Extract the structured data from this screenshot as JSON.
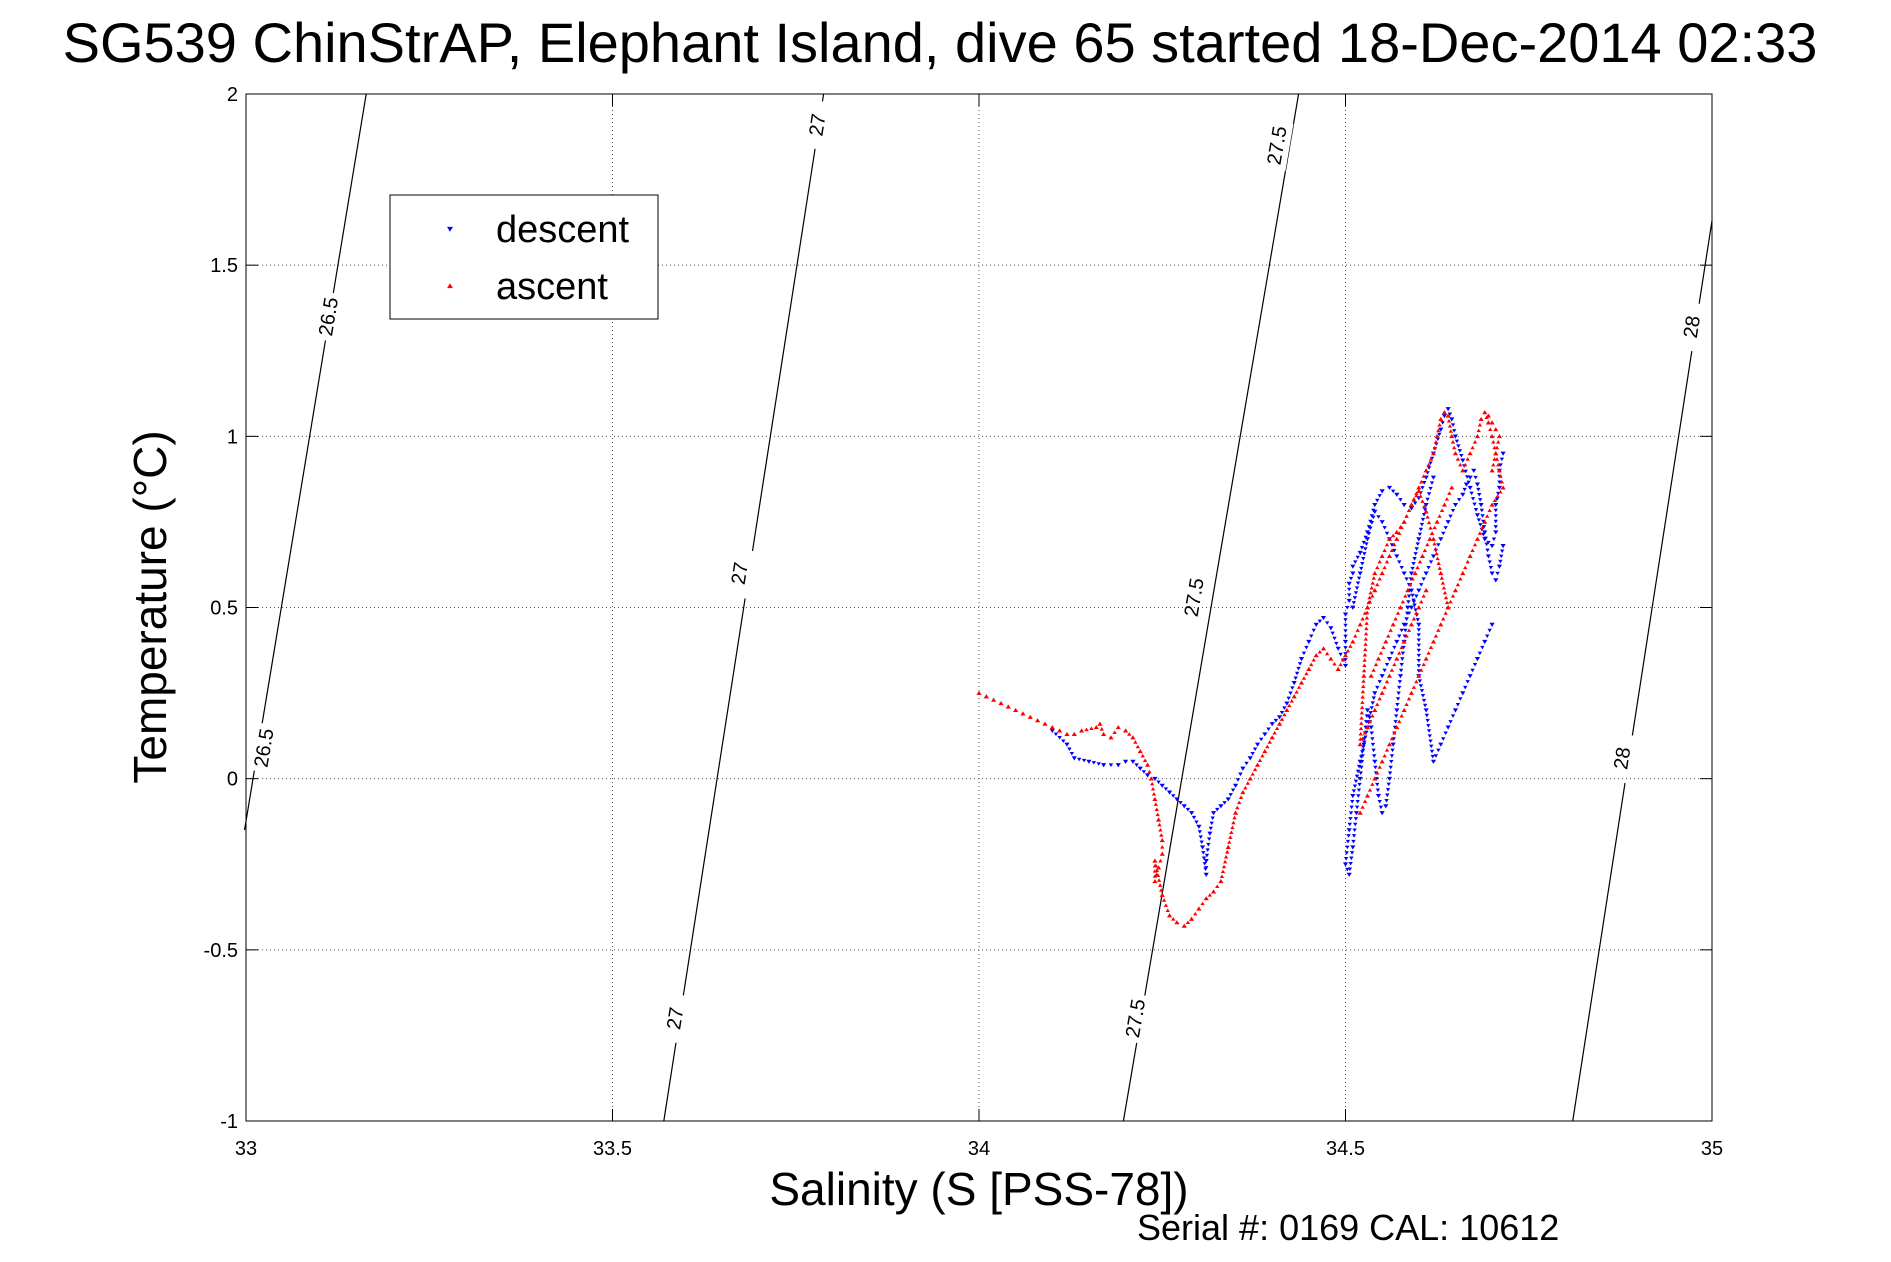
{
  "chart_data": {
    "type": "scatter",
    "title": "SG539 ChinStrAP, Elephant Island, dive 65 started 18-Dec-2014 02:33",
    "xlabel": "Salinity (S [PSS-78])",
    "ylabel": "Temperature (°C)",
    "xlim": [
      33,
      35
    ],
    "ylim": [
      -1,
      2
    ],
    "xticks": [
      "33",
      "33.5",
      "34",
      "34.5",
      "35"
    ],
    "yticks": [
      "-1",
      "-0.5",
      "0",
      "0.5",
      "1",
      "1.5",
      "2"
    ],
    "grid": true,
    "footer": "Serial #: 0169 CAL: 10612",
    "legend": {
      "position": "top-left",
      "entries": [
        {
          "label": "descent",
          "color": "#0000ff",
          "marker": "triangle-down"
        },
        {
          "label": "ascent",
          "color": "#ff0000",
          "marker": "triangle-up"
        }
      ]
    },
    "density_contours": [
      {
        "label": "26.5",
        "line": [
          [
            32.998,
            -0.15
          ],
          [
            33.164,
            2.0
          ]
        ],
        "label_at": [
          [
            33.024,
            0.09
          ],
          [
            33.112,
            1.35
          ]
        ]
      },
      {
        "label": "27",
        "line": [
          [
            33.57,
            -1.0
          ],
          [
            33.788,
            2.0
          ]
        ],
        "label_at": [
          [
            33.585,
            -0.7
          ],
          [
            33.673,
            0.6
          ],
          [
            33.779,
            1.91
          ]
        ]
      },
      {
        "label": "27.5",
        "line": [
          [
            34.197,
            -1.0
          ],
          [
            34.436,
            2.0
          ]
        ],
        "label_at": [
          [
            34.213,
            -0.7
          ],
          [
            34.293,
            0.53
          ],
          [
            34.406,
            1.85
          ]
        ]
      },
      {
        "label": "28",
        "line": [
          [
            34.81,
            -1.0
          ],
          [
            35.0,
            1.63
          ]
        ],
        "label_at": [
          [
            34.877,
            0.06
          ],
          [
            34.972,
            1.32
          ]
        ]
      }
    ],
    "series": [
      {
        "name": "descent",
        "color": "#0000ff",
        "marker": "triangle-down",
        "x": [
          34.1,
          34.12,
          34.13,
          34.15,
          34.17,
          34.19,
          34.2,
          34.21,
          34.22,
          34.23,
          34.24,
          34.25,
          34.26,
          34.27,
          34.28,
          34.29,
          34.3,
          34.305,
          34.31,
          34.31,
          34.315,
          34.32,
          34.33,
          34.34,
          34.35,
          34.36,
          34.37,
          34.38,
          34.39,
          34.4,
          34.41,
          34.42,
          34.43,
          34.44,
          34.45,
          34.46,
          34.47,
          34.48,
          34.49,
          34.5,
          34.5,
          34.5,
          34.505,
          34.505,
          34.51,
          34.51,
          34.52,
          34.53,
          34.54,
          34.55,
          34.56,
          34.57,
          34.58,
          34.59,
          34.6,
          34.61,
          34.62,
          34.63,
          34.635,
          34.64,
          34.645,
          34.65,
          34.66,
          34.67,
          34.68,
          34.69,
          34.7,
          34.705,
          34.705,
          34.71,
          34.71,
          34.715,
          34.62,
          34.61,
          34.6,
          34.59,
          34.585,
          34.58,
          34.575,
          34.57,
          34.565,
          34.56,
          34.555,
          34.55,
          34.545,
          34.54,
          34.535,
          34.53,
          34.525,
          34.52,
          34.515,
          34.51,
          34.505,
          34.5,
          34.505,
          34.51,
          34.52,
          34.53,
          34.54,
          34.55,
          34.56,
          34.57,
          34.58,
          34.59,
          34.6,
          34.61,
          34.62,
          34.63,
          34.64,
          34.65,
          34.66,
          34.665,
          34.67,
          34.675,
          34.68,
          34.685,
          34.69,
          34.695,
          34.7,
          34.705,
          34.71,
          34.715,
          34.7,
          34.69,
          34.68,
          34.67,
          34.66,
          34.65,
          34.64,
          34.63,
          34.62,
          34.61,
          34.6,
          34.6,
          34.59,
          34.58,
          34.57,
          34.56,
          34.55,
          34.54,
          34.53,
          34.52,
          34.51
        ],
        "y": [
          0.14,
          0.1,
          0.06,
          0.05,
          0.04,
          0.04,
          0.05,
          0.05,
          0.03,
          0.01,
          0.0,
          -0.02,
          -0.04,
          -0.06,
          -0.08,
          -0.1,
          -0.14,
          -0.2,
          -0.28,
          -0.24,
          -0.16,
          -0.1,
          -0.08,
          -0.06,
          -0.02,
          0.03,
          0.06,
          0.1,
          0.13,
          0.16,
          0.18,
          0.22,
          0.28,
          0.35,
          0.4,
          0.45,
          0.47,
          0.44,
          0.38,
          0.33,
          0.4,
          0.48,
          0.52,
          0.57,
          0.6,
          0.62,
          0.66,
          0.72,
          0.8,
          0.84,
          0.85,
          0.83,
          0.8,
          0.79,
          0.82,
          0.88,
          0.95,
          1.02,
          1.06,
          1.08,
          1.05,
          1.0,
          0.93,
          0.85,
          0.77,
          0.7,
          0.68,
          0.72,
          0.8,
          0.85,
          0.9,
          0.95,
          0.88,
          0.8,
          0.7,
          0.6,
          0.5,
          0.4,
          0.3,
          0.2,
          0.1,
          0.0,
          -0.08,
          -0.1,
          -0.05,
          0.05,
          0.15,
          0.2,
          0.1,
          0.0,
          -0.1,
          -0.2,
          -0.28,
          -0.25,
          -0.15,
          -0.05,
          0.05,
          0.15,
          0.25,
          0.3,
          0.35,
          0.4,
          0.45,
          0.5,
          0.55,
          0.6,
          0.65,
          0.7,
          0.75,
          0.8,
          0.83,
          0.86,
          0.88,
          0.9,
          0.86,
          0.8,
          0.72,
          0.65,
          0.6,
          0.58,
          0.62,
          0.68,
          0.45,
          0.4,
          0.35,
          0.3,
          0.25,
          0.2,
          0.15,
          0.1,
          0.05,
          0.2,
          0.3,
          0.45,
          0.55,
          0.6,
          0.65,
          0.7,
          0.75,
          0.78,
          0.7,
          0.6,
          0.5
        ]
      },
      {
        "name": "ascent",
        "color": "#ff0000",
        "marker": "triangle-up",
        "x": [
          34.0,
          34.01,
          34.02,
          34.03,
          34.04,
          34.05,
          34.06,
          34.07,
          34.08,
          34.09,
          34.1,
          34.11,
          34.12,
          34.13,
          34.14,
          34.16,
          34.165,
          34.17,
          34.18,
          34.19,
          34.2,
          34.21,
          34.22,
          34.23,
          34.235,
          34.24,
          34.245,
          34.25,
          34.25,
          34.245,
          34.24,
          34.24,
          34.25,
          34.26,
          34.27,
          34.28,
          34.29,
          34.3,
          34.31,
          34.32,
          34.33,
          34.34,
          34.35,
          34.36,
          34.37,
          34.38,
          34.39,
          34.4,
          34.41,
          34.42,
          34.43,
          34.44,
          34.45,
          34.46,
          34.47,
          34.48,
          34.49,
          34.5,
          34.51,
          34.52,
          34.53,
          34.54,
          34.55,
          34.56,
          34.57,
          34.58,
          34.59,
          34.6,
          34.61,
          34.62,
          34.625,
          34.63,
          34.635,
          34.64,
          34.645,
          34.65,
          34.66,
          34.67,
          34.68,
          34.685,
          34.69,
          34.695,
          34.7,
          34.705,
          34.71,
          34.715,
          34.7,
          34.69,
          34.68,
          34.67,
          34.66,
          34.65,
          34.64,
          34.63,
          34.62,
          34.61,
          34.6,
          34.59,
          34.58,
          34.57,
          34.56,
          34.55,
          34.54,
          34.53,
          34.52,
          34.535,
          34.545,
          34.555,
          34.565,
          34.575,
          34.585,
          34.595,
          34.605,
          34.615,
          34.625,
          34.635,
          34.645,
          34.61,
          34.6,
          34.59,
          34.58,
          34.57,
          34.56,
          34.55,
          34.54,
          34.53,
          34.52,
          34.525,
          34.53,
          34.54,
          34.55,
          34.56,
          34.57,
          34.58,
          34.59,
          34.6,
          34.61,
          34.62,
          34.63,
          34.64,
          34.7,
          34.705,
          34.71,
          34.705,
          34.7,
          34.695
        ],
        "y": [
          0.25,
          0.24,
          0.23,
          0.22,
          0.21,
          0.2,
          0.19,
          0.18,
          0.17,
          0.16,
          0.15,
          0.14,
          0.13,
          0.13,
          0.14,
          0.15,
          0.16,
          0.13,
          0.12,
          0.15,
          0.14,
          0.12,
          0.08,
          0.04,
          0.0,
          -0.06,
          -0.12,
          -0.18,
          -0.22,
          -0.26,
          -0.3,
          -0.24,
          -0.34,
          -0.4,
          -0.42,
          -0.43,
          -0.41,
          -0.38,
          -0.35,
          -0.33,
          -0.3,
          -0.2,
          -0.1,
          -0.04,
          0.0,
          0.04,
          0.08,
          0.12,
          0.16,
          0.2,
          0.24,
          0.28,
          0.32,
          0.36,
          0.38,
          0.35,
          0.32,
          0.36,
          0.4,
          0.45,
          0.5,
          0.55,
          0.6,
          0.65,
          0.7,
          0.75,
          0.8,
          0.85,
          0.9,
          0.95,
          1.0,
          1.05,
          1.07,
          1.06,
          1.0,
          0.95,
          0.9,
          0.95,
          1.0,
          1.05,
          1.07,
          1.04,
          1.0,
          0.95,
          0.9,
          0.85,
          0.8,
          0.75,
          0.7,
          0.65,
          0.6,
          0.55,
          0.5,
          0.45,
          0.4,
          0.35,
          0.3,
          0.25,
          0.2,
          0.15,
          0.1,
          0.05,
          0.0,
          -0.05,
          -0.1,
          0.3,
          0.35,
          0.4,
          0.45,
          0.5,
          0.55,
          0.6,
          0.65,
          0.7,
          0.75,
          0.8,
          0.85,
          0.55,
          0.5,
          0.45,
          0.4,
          0.35,
          0.3,
          0.25,
          0.2,
          0.15,
          0.1,
          0.3,
          0.5,
          0.6,
          0.65,
          0.7,
          0.72,
          0.75,
          0.8,
          0.84,
          0.78,
          0.7,
          0.6,
          0.5,
          0.9,
          0.95,
          1.0,
          1.02,
          1.04,
          1.06
        ]
      }
    ]
  }
}
